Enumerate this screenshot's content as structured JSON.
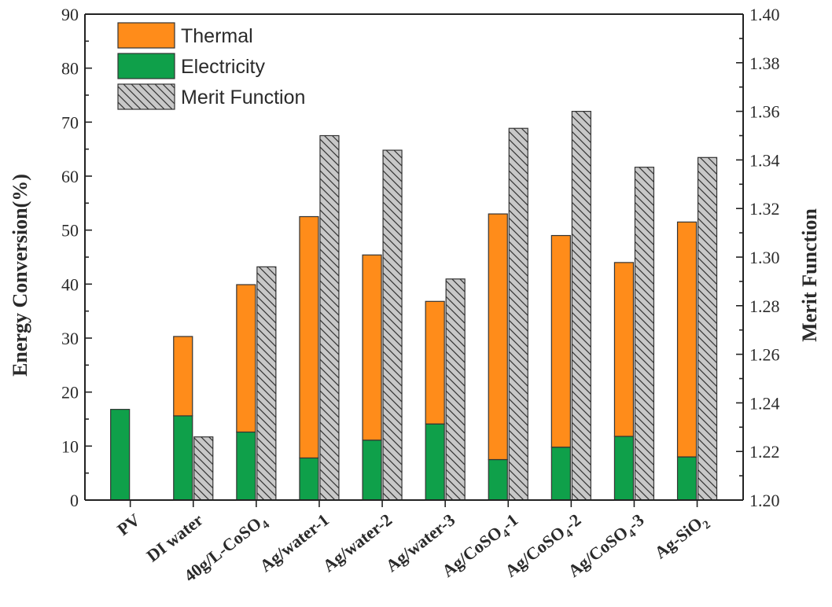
{
  "colors": {
    "thermal": "#FF8C1A",
    "electricity": "#0FA04A",
    "merit": "#C8C8C8"
  },
  "chart_data": {
    "type": "bar",
    "categories": [
      "PV",
      "DI water",
      "40g/L-CoSO4",
      "Ag/water-1",
      "Ag/water-2",
      "Ag/water-3",
      "Ag/CoSO4-1",
      "Ag/CoSO4-2",
      "Ag/CoSO4-3",
      "Ag-SiO2"
    ],
    "category_labels": [
      {
        "main": "PV",
        "sub": "",
        "tail": ""
      },
      {
        "main": "DI water",
        "sub": "",
        "tail": ""
      },
      {
        "main": "40g/L-CoSO",
        "sub": "4",
        "tail": ""
      },
      {
        "main": "Ag/water-1",
        "sub": "",
        "tail": ""
      },
      {
        "main": "Ag/water-2",
        "sub": "",
        "tail": ""
      },
      {
        "main": "Ag/water-3",
        "sub": "",
        "tail": ""
      },
      {
        "main": "Ag/CoSO",
        "sub": "4",
        "tail": "-1"
      },
      {
        "main": "Ag/CoSO",
        "sub": "4",
        "tail": "-2"
      },
      {
        "main": "Ag/CoSO",
        "sub": "4",
        "tail": "-3"
      },
      {
        "main": "Ag-SiO",
        "sub": "2",
        "tail": ""
      }
    ],
    "series": [
      {
        "name": "Thermal",
        "axis": "left",
        "stacked_on": "Electricity",
        "values": [
          0,
          14.7,
          27.3,
          44.7,
          34.3,
          22.7,
          45.5,
          39.2,
          32.2,
          43.5
        ]
      },
      {
        "name": "Electricity",
        "axis": "left",
        "values": [
          16.8,
          15.6,
          12.6,
          7.8,
          11.1,
          14.1,
          7.5,
          9.8,
          11.8,
          8.0
        ]
      },
      {
        "name": "Merit Function",
        "axis": "right",
        "values": [
          null,
          1.226,
          1.296,
          1.35,
          1.344,
          1.291,
          1.353,
          1.36,
          1.337,
          1.341
        ]
      }
    ],
    "ylabel": "Energy Conversion(%)",
    "y2label": "Merit Function",
    "ylim": [
      0,
      90
    ],
    "yticks": [
      "0",
      "10",
      "20",
      "30",
      "40",
      "50",
      "60",
      "70",
      "80",
      "90"
    ],
    "y2lim": [
      1.2,
      1.4
    ],
    "y2ticks": [
      "1.20",
      "1.22",
      "1.24",
      "1.26",
      "1.28",
      "1.30",
      "1.32",
      "1.34",
      "1.36",
      "1.38",
      "1.40"
    ],
    "legend_position": "top-left",
    "grid": false
  }
}
